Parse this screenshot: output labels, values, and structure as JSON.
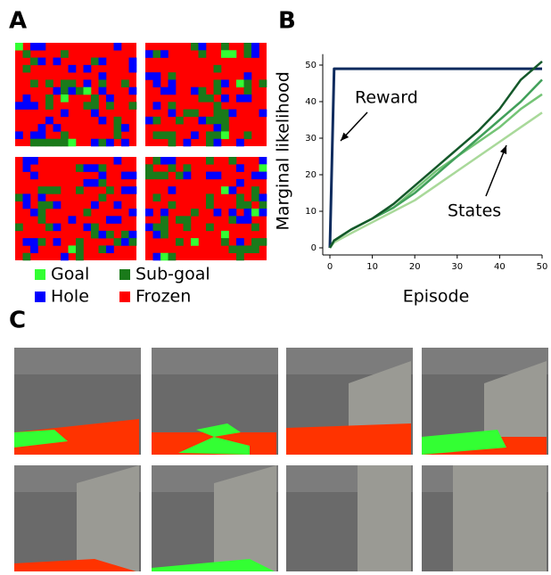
{
  "panel_labels": [
    "A",
    "B",
    "C"
  ],
  "legend": [
    {
      "name": "Goal",
      "color": "#33ff33"
    },
    {
      "name": "Sub-goal",
      "color": "#1a7a1a"
    },
    {
      "name": "Hole",
      "color": "#0000ff"
    },
    {
      "name": "Frozen",
      "color": "#ff0000"
    }
  ],
  "chart_data": {
    "type": "line",
    "xlabel": "Episode",
    "ylabel": "Marginal likelihood",
    "annotations": [
      "Reward",
      "States"
    ],
    "x": [
      0,
      1,
      5,
      10,
      15,
      20,
      25,
      30,
      35,
      40,
      45,
      50
    ],
    "series": [
      {
        "color": "#0d2b5e",
        "values": [
          0,
          49,
          49,
          49,
          49,
          49,
          49,
          49,
          49,
          49,
          49,
          49
        ]
      },
      {
        "color": "#a9d99a",
        "values": [
          0,
          1.5,
          4,
          7,
          10,
          13,
          17,
          21,
          25,
          29,
          33,
          37
        ]
      },
      {
        "color": "#74c476",
        "values": [
          0,
          2,
          5,
          8,
          11,
          16,
          21,
          25,
          29,
          33,
          38,
          42
        ]
      },
      {
        "color": "#41a05a",
        "values": [
          0,
          2,
          5,
          8,
          11,
          15,
          20,
          25,
          30,
          35,
          40,
          46
        ]
      },
      {
        "color": "#14582a",
        "values": [
          0,
          2,
          5,
          8,
          12,
          17,
          22,
          27,
          32,
          38,
          46,
          51
        ]
      }
    ],
    "xlim": [
      0,
      50
    ],
    "ylim": [
      0,
      53
    ],
    "xticks": [
      0,
      10,
      20,
      30,
      40,
      50
    ],
    "yticks": [
      0,
      10,
      20,
      30,
      40,
      50
    ]
  }
}
